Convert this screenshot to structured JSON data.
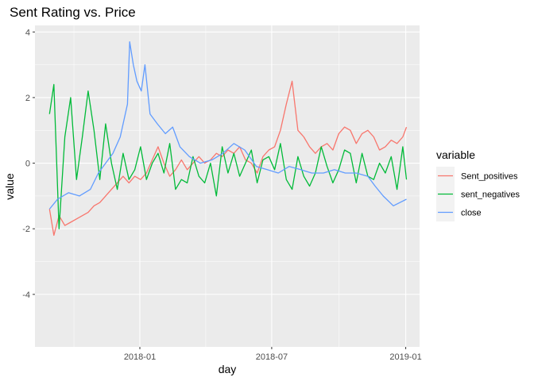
{
  "chart_data": {
    "type": "line",
    "title": "Sent Rating vs. Price",
    "xlabel": "day",
    "ylabel": "value",
    "x_ticks": [
      "2018-01",
      "2018-07",
      "2019-01"
    ],
    "y_ticks": [
      4,
      2,
      0,
      -2,
      -4
    ],
    "xlim": [
      "2017-08-10",
      "2019-01-20"
    ],
    "ylim": [
      -5.6,
      4.2
    ],
    "grid": true,
    "legend": {
      "title": "variable",
      "position": "right"
    },
    "series": [
      {
        "name": "Sent_positives",
        "color": "#F8766D",
        "x": [
          "2017-08-30",
          "2017-09-05",
          "2017-09-12",
          "2017-09-20",
          "2017-09-28",
          "2017-10-06",
          "2017-10-14",
          "2017-10-22",
          "2017-10-30",
          "2017-11-07",
          "2017-11-15",
          "2017-11-23",
          "2017-12-01",
          "2017-12-09",
          "2017-12-17",
          "2017-12-25",
          "2018-01-02",
          "2018-01-10",
          "2018-01-18",
          "2018-01-26",
          "2018-02-03",
          "2018-02-11",
          "2018-02-19",
          "2018-02-27",
          "2018-03-07",
          "2018-03-15",
          "2018-03-23",
          "2018-03-31",
          "2018-04-08",
          "2018-04-16",
          "2018-04-24",
          "2018-05-02",
          "2018-05-10",
          "2018-05-18",
          "2018-05-26",
          "2018-06-03",
          "2018-06-11",
          "2018-06-19",
          "2018-06-27",
          "2018-07-05",
          "2018-07-13",
          "2018-07-21",
          "2018-07-29",
          "2018-08-06",
          "2018-08-14",
          "2018-08-22",
          "2018-08-30",
          "2018-09-07",
          "2018-09-15",
          "2018-09-23",
          "2018-10-01",
          "2018-10-09",
          "2018-10-17",
          "2018-10-25",
          "2018-11-02",
          "2018-11-10",
          "2018-11-18",
          "2018-11-26",
          "2018-12-04",
          "2018-12-12",
          "2018-12-20",
          "2018-12-28",
          "2019-01-02"
        ],
        "y": [
          -1.4,
          -2.2,
          -1.6,
          -1.9,
          -1.8,
          -1.7,
          -1.6,
          -1.5,
          -1.3,
          -1.2,
          -1.0,
          -0.8,
          -0.6,
          -0.4,
          -0.6,
          -0.4,
          -0.5,
          -0.3,
          0.1,
          0.5,
          0.0,
          -0.4,
          -0.2,
          0.1,
          -0.2,
          0.0,
          0.2,
          0.0,
          0.1,
          0.3,
          0.2,
          0.4,
          0.3,
          0.5,
          0.1,
          0.0,
          -0.3,
          0.2,
          0.4,
          0.5,
          1.0,
          1.8,
          2.5,
          1.0,
          0.8,
          0.5,
          0.3,
          0.5,
          0.6,
          0.4,
          0.9,
          1.1,
          1.0,
          0.6,
          0.9,
          1.0,
          0.8,
          0.4,
          0.5,
          0.7,
          0.6,
          0.8,
          1.1
        ]
      },
      {
        "name": "sent_negatives",
        "color": "#00BA38",
        "x": [
          "2017-08-30",
          "2017-09-05",
          "2017-09-12",
          "2017-09-20",
          "2017-09-28",
          "2017-10-06",
          "2017-10-14",
          "2017-10-22",
          "2017-10-30",
          "2017-11-07",
          "2017-11-15",
          "2017-11-23",
          "2017-12-01",
          "2017-12-09",
          "2017-12-17",
          "2017-12-25",
          "2018-01-02",
          "2018-01-10",
          "2018-01-18",
          "2018-01-26",
          "2018-02-03",
          "2018-02-11",
          "2018-02-19",
          "2018-02-27",
          "2018-03-07",
          "2018-03-15",
          "2018-03-23",
          "2018-03-31",
          "2018-04-08",
          "2018-04-16",
          "2018-04-24",
          "2018-05-02",
          "2018-05-10",
          "2018-05-18",
          "2018-05-26",
          "2018-06-03",
          "2018-06-11",
          "2018-06-19",
          "2018-06-27",
          "2018-07-05",
          "2018-07-13",
          "2018-07-21",
          "2018-07-29",
          "2018-08-06",
          "2018-08-14",
          "2018-08-22",
          "2018-08-30",
          "2018-09-07",
          "2018-09-15",
          "2018-09-23",
          "2018-10-01",
          "2018-10-09",
          "2018-10-17",
          "2018-10-25",
          "2018-11-02",
          "2018-11-10",
          "2018-11-18",
          "2018-11-26",
          "2018-12-04",
          "2018-12-12",
          "2018-12-20",
          "2018-12-28",
          "2019-01-02"
        ],
        "y": [
          1.5,
          2.4,
          -2.0,
          0.8,
          2.0,
          -0.5,
          0.8,
          2.2,
          1.0,
          -0.5,
          1.2,
          0.0,
          -0.8,
          0.3,
          -0.5,
          -0.2,
          0.5,
          -0.5,
          0.0,
          0.3,
          -0.3,
          0.6,
          -0.8,
          -0.5,
          -0.6,
          0.2,
          -0.4,
          -0.6,
          0.0,
          -1.0,
          0.5,
          -0.3,
          0.3,
          -0.4,
          0.0,
          0.4,
          -0.6,
          0.1,
          0.2,
          -0.2,
          0.6,
          -0.5,
          -0.8,
          0.2,
          -0.4,
          -0.7,
          -0.3,
          0.5,
          -0.1,
          -0.6,
          -0.2,
          0.4,
          0.3,
          -0.6,
          0.3,
          -0.4,
          -0.5,
          0.0,
          -0.3,
          0.2,
          -0.8,
          0.5,
          -0.5
        ]
      },
      {
        "name": "close",
        "color": "#619CFF",
        "x": [
          "2017-08-30",
          "2017-09-10",
          "2017-09-25",
          "2017-10-10",
          "2017-10-25",
          "2017-11-05",
          "2017-11-15",
          "2017-11-25",
          "2017-12-05",
          "2017-12-15",
          "2017-12-18",
          "2017-12-23",
          "2017-12-28",
          "2018-01-03",
          "2018-01-08",
          "2018-01-15",
          "2018-01-25",
          "2018-02-05",
          "2018-02-15",
          "2018-02-25",
          "2018-03-10",
          "2018-03-25",
          "2018-04-10",
          "2018-04-25",
          "2018-05-10",
          "2018-05-25",
          "2018-06-10",
          "2018-06-25",
          "2018-07-10",
          "2018-07-25",
          "2018-08-10",
          "2018-08-25",
          "2018-09-10",
          "2018-09-25",
          "2018-10-10",
          "2018-10-25",
          "2018-11-10",
          "2018-11-20",
          "2018-12-01",
          "2018-12-15",
          "2019-01-02"
        ],
        "y": [
          -1.4,
          -1.1,
          -0.9,
          -1.0,
          -0.8,
          -0.3,
          0.0,
          0.3,
          0.8,
          1.8,
          3.7,
          3.0,
          2.5,
          2.2,
          3.0,
          1.5,
          1.2,
          0.9,
          1.1,
          0.5,
          0.2,
          0.0,
          0.1,
          0.3,
          0.6,
          0.4,
          -0.1,
          -0.2,
          -0.3,
          -0.1,
          -0.2,
          -0.3,
          -0.3,
          -0.2,
          -0.3,
          -0.3,
          -0.4,
          -0.7,
          -1.0,
          -1.3,
          -1.1
        ]
      }
    ]
  }
}
